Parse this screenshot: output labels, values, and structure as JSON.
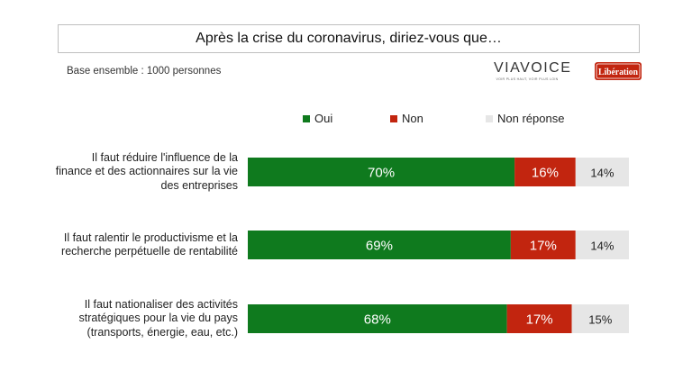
{
  "header": {
    "title": "Après la crise du coronavirus, diriez-vous que…",
    "base_note": "Base ensemble : 1000 personnes"
  },
  "logos": {
    "viavoice_word": "VIAVOICE",
    "viavoice_tagline": "VOIR PLUS HAUT, VOIR PLUS LOIN",
    "liberation_word": "Libération"
  },
  "colors": {
    "oui": "#0f7a1e",
    "non": "#c2250f",
    "non_reponse": "#e6e6e6",
    "label_on_dark": "#ffffff",
    "label_on_light": "#222222"
  },
  "chart_data": {
    "type": "bar",
    "orientation": "horizontal",
    "stacked": true,
    "legend_position": "top",
    "xlim": [
      0,
      100
    ],
    "categories": [
      "Il faut réduire l'influence de la finance et des actionnaires sur la vie des entreprises",
      "Il faut ralentir le productivisme et la recherche perpétuelle de rentabilité",
      "Il faut nationaliser des activités stratégiques pour la vie du pays (transports, énergie, eau, etc.)"
    ],
    "category_lines": [
      [
        "Il faut réduire l'influence de la",
        "finance et des actionnaires sur la vie",
        "des entreprises"
      ],
      [
        "Il faut ralentir le productivisme et la",
        "recherche perpétuelle de rentabilité"
      ],
      [
        "Il faut nationaliser des activités",
        "stratégiques pour la vie du pays",
        "(transports, énergie, eau, etc.)"
      ]
    ],
    "series": [
      {
        "name": "Oui",
        "values": [
          70,
          69,
          68
        ],
        "labels": [
          "70%",
          "69%",
          "68%"
        ]
      },
      {
        "name": "Non",
        "values": [
          16,
          17,
          17
        ],
        "labels": [
          "16%",
          "17%",
          "17%"
        ]
      },
      {
        "name": "Non réponse",
        "values": [
          14,
          14,
          15
        ],
        "labels": [
          "14%",
          "14%",
          "15%"
        ]
      }
    ]
  }
}
